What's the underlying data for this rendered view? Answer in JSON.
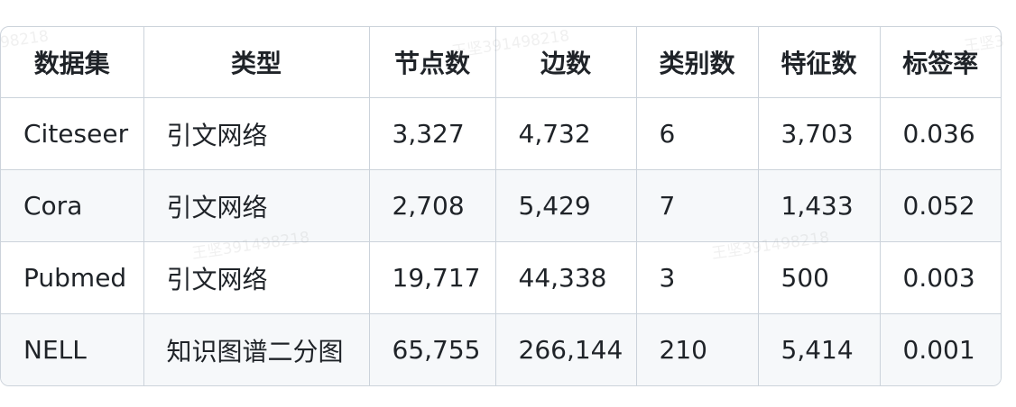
{
  "table": {
    "headers": [
      "数据集",
      "类型",
      "节点数",
      "边数",
      "类别数",
      "特征数",
      "标签率"
    ],
    "rows": [
      [
        "Citeseer",
        "引文网络",
        "3,327",
        "4,732",
        "6",
        "3,703",
        "0.036"
      ],
      [
        "Cora",
        "引文网络",
        "2,708",
        "5,429",
        "7",
        "1,433",
        "0.052"
      ],
      [
        "Pubmed",
        "引文网络",
        "19,717",
        "44,338",
        "3",
        "500",
        "0.003"
      ],
      [
        "NELL",
        "知识图谱二分图",
        "65,755",
        "266,144",
        "210",
        "5,414",
        "0.001"
      ]
    ]
  },
  "watermarks": [
    "98218",
    "王坚391498218",
    "王坚3",
    "王坚391498218",
    "王坚391498218"
  ]
}
